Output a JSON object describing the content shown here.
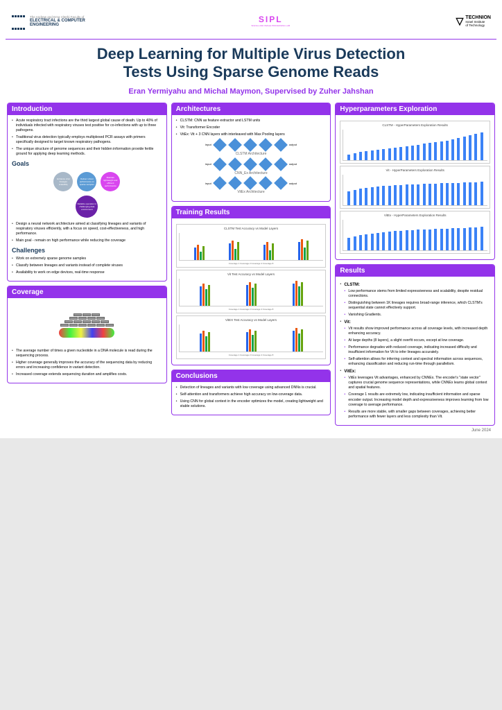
{
  "header": {
    "facultyTop": "The Andrew and Erna Viterbi Faculty of",
    "facultyMain": "ELECTRICAL & COMPUTER",
    "facultyMain2": "ENGINEERING",
    "sipl": "SIPL",
    "siplSub": "SIGNAL AND IMAGE PROCESSING LAB",
    "technion": "TECHNION",
    "technionSub": "Israel Institute",
    "technionSub2": "of Technology"
  },
  "title": {
    "line1": "Deep Learning for Multiple Virus Detection",
    "line2": "Tests Using Sparse Genome Reads",
    "authors": "Eran Yermiyahu and Michal Maymon, Supervised by Zuher Jahshan"
  },
  "intro": {
    "header": "Introduction",
    "items": [
      "Acute respiratory tract infections are the third largest global cause of death. Up to 40% of individuals infected with respiratory viruses test positive for co-infections with up to three pathogens.",
      "Traditional virus detection typically employs multiplexed PCR assays with primers specifically designed to target known respiratory pathogens.",
      "The unique structure of genome sequences and their hidden information provide fertile ground for applying deep learning methods."
    ],
    "goals": "Goals",
    "goalCircles": [
      {
        "text": "Enhance viral lineages scalability",
        "color": "#a8b8c8"
      },
      {
        "text": "Deliver robust performance on sparse samples",
        "color": "#5b9bd5"
      },
      {
        "text": "Maintain lightweight and efficient performance",
        "color": "#d946ef"
      }
    ],
    "goalCenter": "Reliable operation in challenging data environment",
    "goalItems": [
      "Design a neural network architecture aimed at classifying lineages and variants of respiratory viruses efficiently, with a focus on speed, cost-effectiveness, and high performance.",
      "Main goal - remain on high performance while reducing the coverage"
    ],
    "challenges": "Challenges",
    "challengeItems": [
      "Work on extremely sparse genome samples",
      "Classify between lineages and variants instead of complete viruses",
      "Availability to work on edge devices, real-time response"
    ]
  },
  "coverage": {
    "header": "Coverage",
    "items": [
      "The average number of times a given nucleotide in a DNA molecule is read during the sequencing process.",
      "Higher coverage generally improves the accuracy of the sequencing data by reducing errors and increasing confidence in variant detection.",
      "Increased coverage extends sequencing duration and amplifies costs."
    ]
  },
  "arch": {
    "header": "Architectures",
    "items": [
      "CLSTM: CNN as feature extractor and LSTM units",
      "Vit: Transformer Encoder",
      "VitEx: Vit + 3 CNN layers with interleaved with Max Pooling layers"
    ],
    "names": [
      "CLSTM Architecture",
      "CNN_Ex Architecture",
      "VitEx Architecture"
    ]
  },
  "training": {
    "header": "Training Results",
    "charts": [
      "CLSTM Test Accuracy vs Model Layers",
      "Vit Test Accuracy vs Model Layers",
      "VitEX Test Accuracy vs Model Layers"
    ],
    "legend": "Coverage 1  Coverage 2  Coverage 4  Coverage 8",
    "bars": {
      "clstm": [
        [
          18,
          22,
          12,
          20
        ],
        [
          24,
          28,
          16,
          26
        ],
        [
          22,
          26,
          14,
          24
        ],
        [
          26,
          30,
          18,
          28
        ]
      ],
      "vit": [
        [
          28,
          32,
          24,
          30
        ],
        [
          30,
          34,
          26,
          32
        ],
        [
          32,
          36,
          28,
          34
        ]
      ],
      "vitex": [
        [
          26,
          30,
          22,
          28
        ],
        [
          28,
          32,
          24,
          30
        ],
        [
          30,
          34,
          26,
          32
        ]
      ]
    }
  },
  "conclusions": {
    "header": "Conclusions",
    "items": [
      "Detection of lineages and variants with low coverage using advanced DNNs is crucial.",
      "Self-attention and transformers achieve high accuracy on low-coverage data.",
      "Using CNN for global context in the encoder optimizes the model, creating lightweight and stable solutions."
    ]
  },
  "hyper": {
    "header": "Hyperparameters Exploration",
    "charts": [
      "CLSTM - HyperParameters Exploration Results",
      "Vit - HyperParameters Exploration Results",
      "VitEx - HyperParameters Exploration Results"
    ],
    "bars": {
      "clstm": [
        8,
        10,
        12,
        13,
        14,
        15,
        16,
        17,
        18,
        19,
        20,
        21,
        22,
        24,
        25,
        26,
        27,
        28,
        30,
        32,
        34,
        36,
        38,
        40
      ],
      "vit": [
        20,
        22,
        24,
        25,
        26,
        27,
        28,
        28,
        29,
        29,
        30,
        30,
        30,
        31,
        31,
        31,
        32,
        32,
        32,
        32,
        33,
        33,
        33,
        34
      ],
      "vitex": [
        18,
        20,
        22,
        23,
        24,
        25,
        26,
        27,
        28,
        28,
        29,
        29,
        30,
        30,
        30,
        31,
        31,
        31,
        32,
        32,
        32,
        33,
        33,
        34
      ]
    }
  },
  "results": {
    "header": "Results",
    "clstm": "CLSTM:",
    "clstmItems": [
      "Low performance stems from limited expressiveness and scalability, despite residual connections.",
      "Distinguishing between 1K lineages requires broad-range inference, which CLSTM's sequential state cannot effectively support.",
      "Vanishing Gradients."
    ],
    "vit": "Vit:",
    "vitItems": [
      "Vit results show improved performance across all coverage levels, with increased depth enhancing accuracy.",
      "At large depths (8 layers), a slight overfit occurs, except at low coverage.",
      "Performance degrades with reduced coverage, indicating increased difficulty and insufficient information for Vit to infer lineages accurately.",
      "Self-attention allows for inferring context and spectral information across sequences, enhancing classification and reducing run-time through parallelism."
    ],
    "vitex": "VitEx:",
    "vitexItems": [
      "VitEx leverages Vit advantages, enhanced by CNNEx. The encoder's \"state vector\" captures crucial genome sequence representations, while CNNEx learns global context and spatial features.",
      "Coverage 1 results are extremely low, indicating insufficient information and sparse encoder output. Increasing model depth and expressiveness improves learning from low coverage to average performance.",
      "Results are more stable, with smaller gaps between coverages, achieving better performance with fewer layers and less complexity than Vit."
    ]
  },
  "footer": "June 2024"
}
